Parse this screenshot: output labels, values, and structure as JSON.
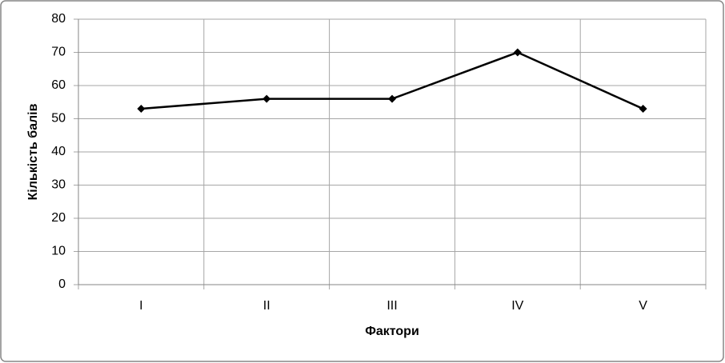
{
  "chart_data": {
    "type": "line",
    "categories": [
      "I",
      "II",
      "III",
      "IV",
      "V"
    ],
    "values": [
      53,
      56,
      56,
      70,
      53
    ],
    "color": "#000000",
    "xlabel": "Фактори",
    "ylabel": "Кількість балів",
    "ylim": [
      0,
      80
    ],
    "yticks": [
      0,
      10,
      20,
      30,
      40,
      50,
      60,
      70,
      80
    ],
    "grid": true
  }
}
